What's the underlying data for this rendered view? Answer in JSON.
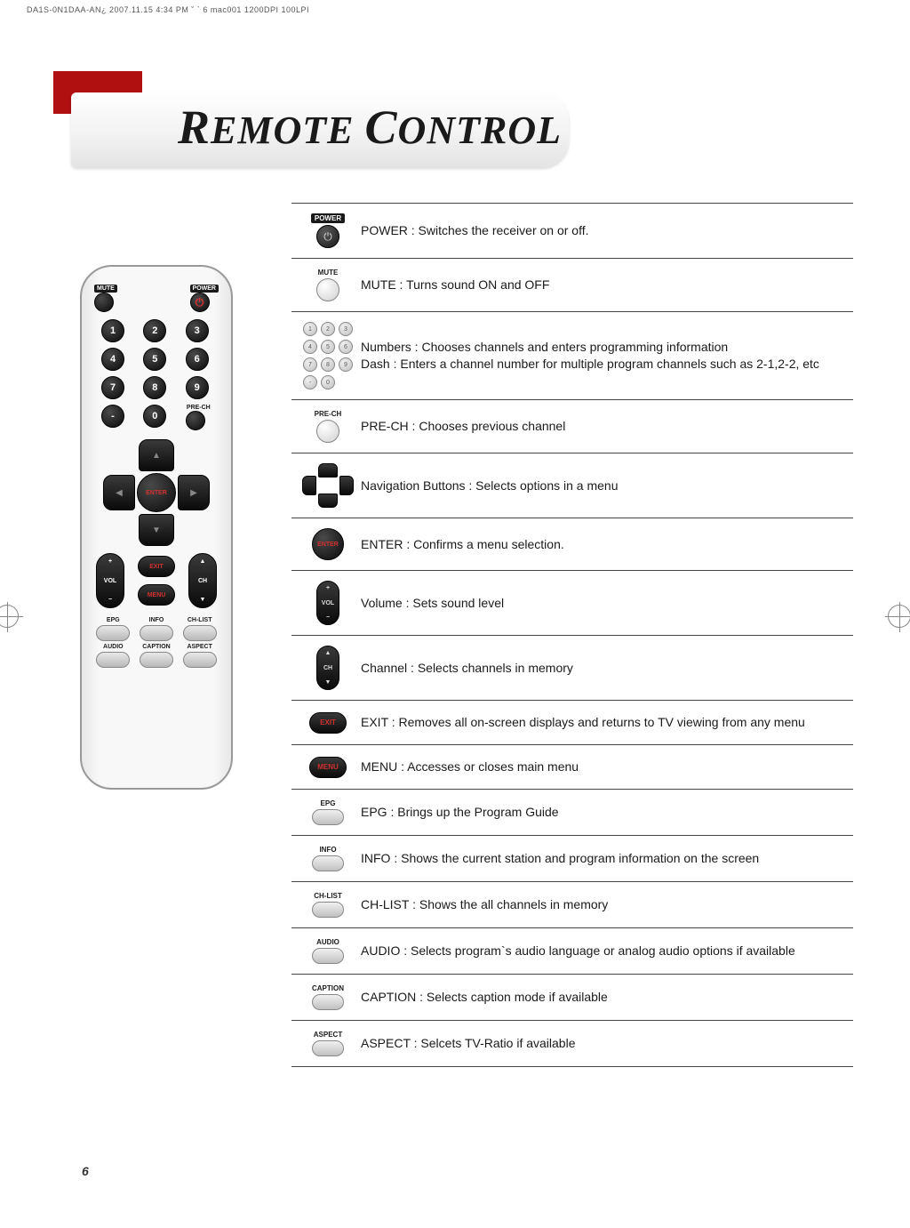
{
  "printHeader": "DA1S-0N1DAA-AN¿   2007.11.15 4:34 PM  ˘ ` 6   mac001  1200DPI 100LPI",
  "title": {
    "word1_cap": "R",
    "word1_rest": "EMOTE",
    "word2_cap": "C",
    "word2_rest": "ONTROL"
  },
  "remote": {
    "muteLabel": "MUTE",
    "powerLabel": "POWER",
    "preChLabel": "PRE-CH",
    "volLabel": "VOL",
    "chLabel": "CH",
    "exitLabel": "EXIT",
    "menuLabel": "MENU",
    "enterLabel": "ENTER",
    "bottomRow1": [
      "EPG",
      "INFO",
      "CH-LIST"
    ],
    "bottomRow2": [
      "AUDIO",
      "CAPTION",
      "ASPECT"
    ],
    "numbers": [
      "1",
      "2",
      "3",
      "4",
      "5",
      "6",
      "7",
      "8",
      "9",
      "-",
      "0",
      ""
    ]
  },
  "rows": [
    {
      "iconLabel": "POWER",
      "text": "POWER : Switches the receiver on or off."
    },
    {
      "iconLabel": "MUTE",
      "text": "MUTE : Turns sound ON and OFF"
    },
    {
      "iconLabel": "",
      "text": "Numbers : Chooses channels and enters programming information\nDash : Enters a channel number for multiple program channels such as 2-1,2-2, etc"
    },
    {
      "iconLabel": "PRE-CH",
      "text": "PRE-CH : Chooses previous channel"
    },
    {
      "iconLabel": "",
      "text": "Navigation Buttons : Selects options in a menu"
    },
    {
      "iconLabel": "ENTER",
      "text": "ENTER : Confirms a menu selection."
    },
    {
      "iconLabel": "VOL",
      "text": "Volume : Sets sound level"
    },
    {
      "iconLabel": "CH",
      "text": "Channel : Selects channels in memory"
    },
    {
      "iconLabel": "EXIT",
      "text": "EXIT : Removes all on-screen displays and returns to TV viewing from any menu"
    },
    {
      "iconLabel": "MENU",
      "text": "MENU : Accesses or closes main menu"
    },
    {
      "iconLabel": "EPG",
      "text": "EPG : Brings up the Program Guide"
    },
    {
      "iconLabel": "INFO",
      "text": "INFO : Shows the current station and program information on the screen"
    },
    {
      "iconLabel": "CH-LIST",
      "text": "CH-LIST : Shows the all channels in memory"
    },
    {
      "iconLabel": "AUDIO",
      "text": "AUDIO : Selects program`s audio language or analog audio options if available"
    },
    {
      "iconLabel": "CAPTION",
      "text": "CAPTION : Selects caption mode if available"
    },
    {
      "iconLabel": "ASPECT",
      "text": "ASPECT : Selcets TV-Ratio if available"
    }
  ],
  "pageNumber": "6",
  "colors": {
    "redTab": "#b01010",
    "accentRed": "#d03030",
    "textColor": "#1a1a1a",
    "ruleColor": "#444444"
  }
}
